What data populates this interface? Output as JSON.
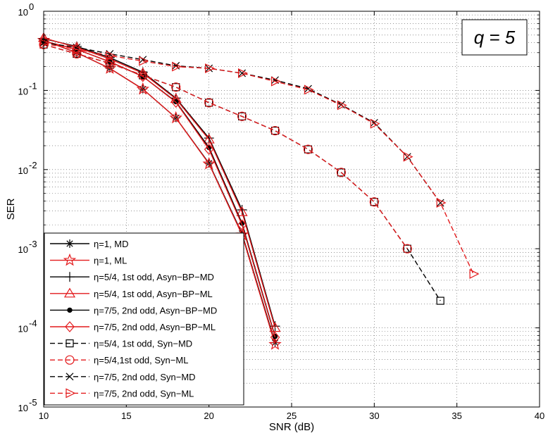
{
  "chart_data": {
    "type": "line",
    "title": "",
    "xlabel": "SNR (dB)",
    "ylabel": "SER",
    "xscale": "linear",
    "yscale": "log",
    "xlim": [
      10,
      40
    ],
    "ylim": [
      1e-05,
      1
    ],
    "xticks": [
      10,
      15,
      20,
      25,
      30,
      35,
      40
    ],
    "xtick_labels": [
      "10",
      "15",
      "20",
      "25",
      "30",
      "35",
      "40"
    ],
    "yticks": [
      1e-05,
      0.0001,
      0.001,
      0.01,
      0.1,
      1
    ],
    "ytick_labels": [
      {
        "base": "10",
        "exp": "-5"
      },
      {
        "base": "10",
        "exp": "-4"
      },
      {
        "base": "10",
        "exp": "-3"
      },
      {
        "base": "10",
        "exp": "-2"
      },
      {
        "base": "10",
        "exp": "-1"
      },
      {
        "base": "10",
        "exp": "0"
      }
    ],
    "grid": true,
    "legend_position": "bottom-left",
    "annotation": "q = 5",
    "annotation_position": "top-right",
    "series": [
      {
        "name": "η=1, MD",
        "color": "#000000",
        "dash": "solid",
        "marker": "star",
        "x": [
          10,
          12,
          14,
          16,
          18,
          20,
          22,
          24
        ],
        "y": [
          0.43,
          0.3,
          0.19,
          0.104,
          0.045,
          0.012,
          0.00155,
          6.5e-05
        ]
      },
      {
        "name": "η=1, ML",
        "color": "#e31a1c",
        "dash": "solid",
        "marker": "pentagram",
        "x": [
          10,
          12,
          14,
          16,
          18,
          20,
          22,
          24
        ],
        "y": [
          0.43,
          0.3,
          0.19,
          0.104,
          0.045,
          0.0118,
          0.0015,
          6.2e-05
        ]
      },
      {
        "name": "η=5/4, 1st odd, Asyn−BP−MD",
        "color": "#000000",
        "dash": "solid",
        "marker": "plus",
        "x": [
          10,
          12,
          14,
          16,
          18,
          20,
          22,
          24
        ],
        "y": [
          0.45,
          0.36,
          0.26,
          0.17,
          0.08,
          0.025,
          0.0031,
          0.000105
        ]
      },
      {
        "name": "η=5/4, 1st odd, Asyn−BP−ML",
        "color": "#e31a1c",
        "dash": "solid",
        "marker": "triangle",
        "x": [
          10,
          12,
          14,
          16,
          18,
          20,
          22,
          24
        ],
        "y": [
          0.46,
          0.35,
          0.25,
          0.165,
          0.078,
          0.024,
          0.0029,
          0.0001
        ]
      },
      {
        "name": "η=7/5, 2nd odd, Asyn−BP−MD",
        "color": "#000000",
        "dash": "solid",
        "marker": "dot",
        "x": [
          10,
          12,
          14,
          16,
          18,
          20,
          22,
          24
        ],
        "y": [
          0.42,
          0.33,
          0.23,
          0.15,
          0.072,
          0.019,
          0.0021,
          7.8e-05
        ]
      },
      {
        "name": "η=7/5, 2nd odd, Asyn−BP−ML",
        "color": "#e31a1c",
        "dash": "solid",
        "marker": "diamond",
        "x": [
          10,
          12,
          14,
          16,
          18,
          20,
          22,
          24
        ],
        "y": [
          0.42,
          0.33,
          0.23,
          0.15,
          0.071,
          0.018,
          0.002,
          7.6e-05
        ]
      },
      {
        "name": "η=5/4, 1st odd, Syn−MD",
        "color": "#000000",
        "dash": "dashed",
        "marker": "square",
        "x": [
          10,
          12,
          14,
          16,
          18,
          20,
          22,
          24,
          26,
          28,
          30,
          32,
          34
        ],
        "y": [
          0.38,
          0.29,
          0.22,
          0.155,
          0.11,
          0.07,
          0.047,
          0.031,
          0.018,
          0.0092,
          0.0039,
          0.001,
          0.00022
        ]
      },
      {
        "name": "η=5/4,1st odd, Syn−ML",
        "color": "#e31a1c",
        "dash": "dashed",
        "marker": "circle",
        "x": [
          10,
          12,
          14,
          16,
          18,
          20,
          22,
          24,
          26,
          28,
          30,
          32
        ],
        "y": [
          0.38,
          0.29,
          0.22,
          0.155,
          0.11,
          0.07,
          0.047,
          0.031,
          0.018,
          0.0092,
          0.0039,
          0.001
        ]
      },
      {
        "name": "η=7/5, 2nd odd, Syn−MD",
        "color": "#000000",
        "dash": "dashed",
        "marker": "x",
        "x": [
          10,
          12,
          14,
          16,
          18,
          20,
          22,
          24,
          26,
          28,
          30,
          32,
          34
        ],
        "y": [
          0.4,
          0.35,
          0.29,
          0.245,
          0.205,
          0.19,
          0.165,
          0.135,
          0.105,
          0.066,
          0.039,
          0.0145,
          0.0038
        ]
      },
      {
        "name": "η=7/5, 2nd odd, Syn−ML",
        "color": "#e31a1c",
        "dash": "dashed",
        "marker": "triangle-right",
        "x": [
          10,
          12,
          14,
          16,
          18,
          20,
          22,
          24,
          26,
          28,
          30,
          32,
          34,
          36
        ],
        "y": [
          0.39,
          0.33,
          0.275,
          0.235,
          0.2,
          0.19,
          0.165,
          0.13,
          0.102,
          0.065,
          0.038,
          0.0145,
          0.0038,
          0.00048
        ]
      }
    ]
  }
}
